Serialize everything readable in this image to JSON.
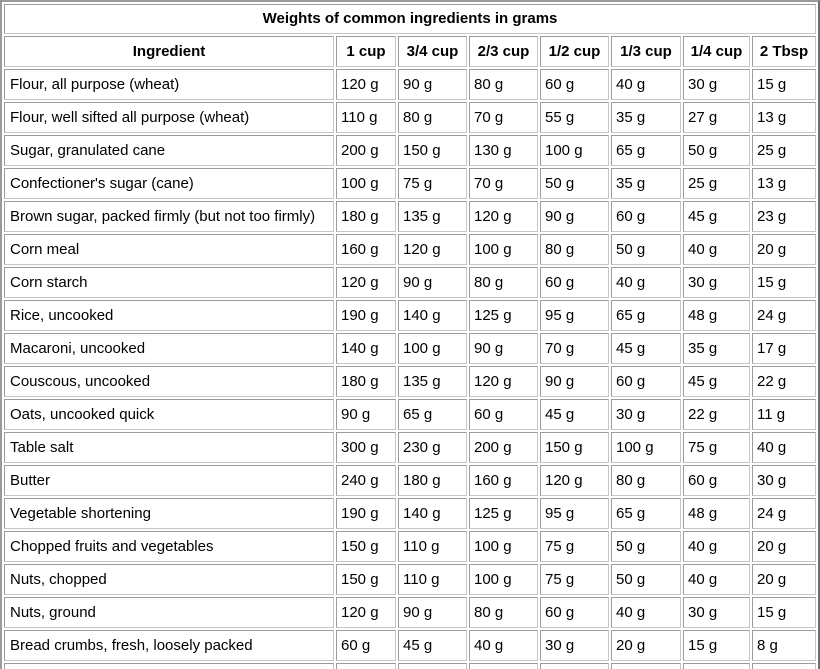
{
  "table": {
    "title": "Weights of common ingredients in grams",
    "columns": [
      "Ingredient",
      "1 cup",
      "3/4 cup",
      "2/3 cup",
      "1/2 cup",
      "1/3 cup",
      "1/4 cup",
      "2 Tbsp"
    ],
    "rows": [
      {
        "ingredient": "Flour, all purpose (wheat)",
        "values": [
          "120 g",
          "90 g",
          "80 g",
          "60 g",
          "40 g",
          "30 g",
          "15 g"
        ]
      },
      {
        "ingredient": "Flour, well sifted all purpose (wheat)",
        "values": [
          "110 g",
          "80 g",
          "70 g",
          "55 g",
          "35 g",
          "27 g",
          "13 g"
        ]
      },
      {
        "ingredient": "Sugar, granulated cane",
        "values": [
          "200 g",
          "150 g",
          "130 g",
          "100 g",
          "65 g",
          "50 g",
          "25 g"
        ]
      },
      {
        "ingredient": "Confectioner's sugar (cane)",
        "values": [
          "100 g",
          "75 g",
          "70 g",
          "50 g",
          "35 g",
          "25 g",
          "13 g"
        ]
      },
      {
        "ingredient": "Brown sugar, packed firmly (but not too firmly)",
        "values": [
          "180 g",
          "135 g",
          "120 g",
          "90 g",
          "60 g",
          "45 g",
          "23 g"
        ]
      },
      {
        "ingredient": "Corn meal",
        "values": [
          "160 g",
          "120 g",
          "100 g",
          "80 g",
          "50 g",
          "40 g",
          "20 g"
        ]
      },
      {
        "ingredient": "Corn starch",
        "values": [
          "120 g",
          "90 g",
          "80 g",
          "60 g",
          "40 g",
          "30 g",
          "15 g"
        ]
      },
      {
        "ingredient": "Rice, uncooked",
        "values": [
          "190 g",
          "140 g",
          "125 g",
          "95 g",
          "65 g",
          "48 g",
          "24 g"
        ]
      },
      {
        "ingredient": "Macaroni, uncooked",
        "values": [
          "140 g",
          "100 g",
          "90 g",
          "70 g",
          "45 g",
          "35 g",
          "17 g"
        ]
      },
      {
        "ingredient": "Couscous, uncooked",
        "values": [
          "180 g",
          "135 g",
          "120 g",
          "90 g",
          "60 g",
          "45 g",
          "22 g"
        ]
      },
      {
        "ingredient": "Oats, uncooked quick",
        "values": [
          "90 g",
          "65 g",
          "60 g",
          "45 g",
          "30 g",
          "22 g",
          "11 g"
        ]
      },
      {
        "ingredient": "Table salt",
        "values": [
          "300 g",
          "230 g",
          "200 g",
          "150 g",
          "100 g",
          "75 g",
          "40 g"
        ]
      },
      {
        "ingredient": "Butter",
        "values": [
          "240 g",
          "180 g",
          "160 g",
          "120 g",
          "80 g",
          "60 g",
          "30 g"
        ]
      },
      {
        "ingredient": "Vegetable shortening",
        "values": [
          "190 g",
          "140 g",
          "125 g",
          "95 g",
          "65 g",
          "48 g",
          "24 g"
        ]
      },
      {
        "ingredient": "Chopped fruits and vegetables",
        "values": [
          "150 g",
          "110 g",
          "100 g",
          "75 g",
          "50 g",
          "40 g",
          "20 g"
        ]
      },
      {
        "ingredient": "Nuts, chopped",
        "values": [
          "150 g",
          "110 g",
          "100 g",
          "75 g",
          "50 g",
          "40 g",
          "20 g"
        ]
      },
      {
        "ingredient": "Nuts, ground",
        "values": [
          "120 g",
          "90 g",
          "80 g",
          "60 g",
          "40 g",
          "30 g",
          "15 g"
        ]
      },
      {
        "ingredient": "Bread crumbs, fresh, loosely packed",
        "values": [
          "60 g",
          "45 g",
          "40 g",
          "30 g",
          "20 g",
          "15 g",
          "8 g"
        ]
      }
    ]
  }
}
